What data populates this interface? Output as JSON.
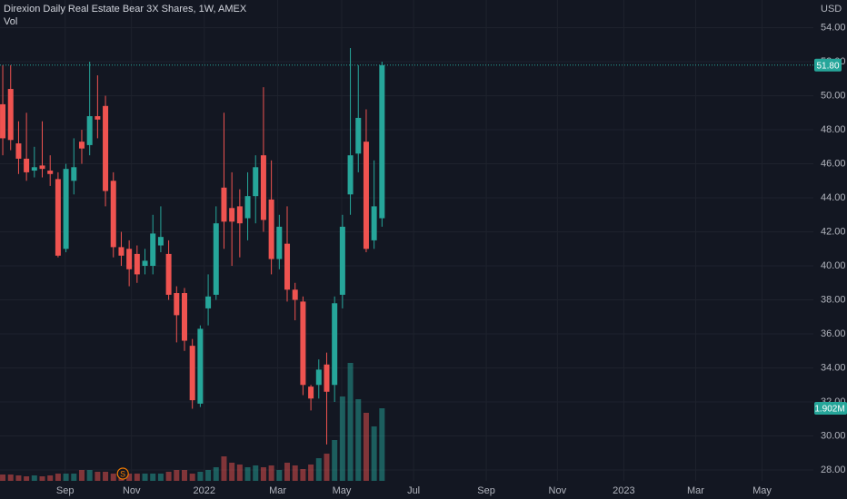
{
  "chart_data": {
    "type": "candlestick",
    "title": "Direxion Daily Real Estate Bear 3X Shares, 1W, AMEX",
    "volume_title": "Vol",
    "currency": "USD",
    "up_color": "#26a69a",
    "down_color": "#ef5350",
    "grid": true,
    "open": [
      49.5,
      50.4,
      47.2,
      46.3,
      45.6,
      45.9,
      45.6,
      45.1,
      41.0,
      45.0,
      47.3,
      47.1,
      48.8,
      49.4,
      45.0,
      41.1,
      41.0,
      40.7,
      40.0,
      40.0,
      41.2,
      40.7,
      38.4,
      38.4,
      35.3,
      31.9,
      37.5,
      38.3,
      44.6,
      43.4,
      43.5,
      42.8,
      44.1,
      46.5,
      43.9,
      40.4,
      41.3,
      38.6,
      37.9,
      32.9,
      33.0,
      34.2,
      33.0,
      38.3,
      44.2,
      46.6,
      47.3,
      41.5,
      42.8
    ],
    "high": [
      51.8,
      51.8,
      48.5,
      49,
      47,
      48.5,
      46.5,
      45.5,
      46.0,
      47.5,
      48,
      52.0,
      51.2,
      50,
      45.5,
      42,
      41.5,
      41.2,
      41,
      43,
      43.5,
      41.5,
      38.8,
      38.7,
      35.7,
      36.5,
      39.5,
      43.5,
      49.0,
      45.5,
      44.5,
      45.5,
      46.5,
      50.5,
      46.2,
      43.0,
      43.5,
      39.0,
      38.2,
      33.0,
      34.5,
      34.9,
      38.2,
      43.0,
      52.8,
      51.8,
      49.2,
      46.2,
      52.0
    ],
    "low": [
      46.5,
      46.8,
      45.4,
      45.0,
      45.2,
      45.2,
      44.7,
      40.5,
      40.8,
      44.2,
      46.0,
      46.5,
      47.5,
      43.5,
      40.5,
      40.0,
      38.8,
      39.0,
      39.5,
      39.5,
      40.8,
      38.0,
      35.5,
      35.0,
      31.6,
      31.7,
      36.5,
      38.0,
      41.0,
      40.0,
      40.5,
      41.5,
      42.5,
      42.0,
      39.5,
      39.8,
      37.9,
      36.8,
      32.4,
      31.5,
      32.2,
      29.5,
      32.0,
      37.5,
      43.0,
      45.5,
      40.8,
      41.0,
      42.3
    ],
    "close": [
      47.5,
      47.4,
      46.3,
      45.5,
      45.8,
      45.7,
      45.4,
      40.6,
      45.7,
      45.8,
      46.9,
      48.8,
      48.6,
      44.4,
      41.1,
      40.6,
      39.8,
      39.5,
      40.3,
      41.9,
      41.7,
      38.3,
      37.1,
      35.6,
      32.1,
      36.3,
      38.2,
      42.5,
      42.6,
      42.6,
      42.5,
      44.1,
      45.8,
      42.7,
      40.4,
      42.3,
      38.6,
      38.0,
      33.0,
      32.2,
      33.9,
      32.6,
      37.8,
      42.3,
      46.5,
      48.7,
      41.0,
      43.5,
      51.8
    ],
    "volume": [
      166000,
      166000,
      143000,
      119000,
      143000,
      119000,
      143000,
      190000,
      190000,
      190000,
      285000,
      285000,
      238000,
      238000,
      190000,
      190000,
      190000,
      190000,
      190000,
      190000,
      190000,
      238000,
      285000,
      285000,
      190000,
      238000,
      285000,
      357000,
      642000,
      476000,
      428000,
      357000,
      404000,
      357000,
      404000,
      285000,
      476000,
      404000,
      309000,
      428000,
      594000,
      713000,
      1070000,
      2211000,
      3091000,
      2140000,
      1783000,
      1427000,
      1902000
    ],
    "last_price": {
      "value": 51.8,
      "label": "51.80"
    },
    "last_volume": {
      "value": 1902000,
      "label": "1.902M"
    },
    "events": [
      {
        "x": 15.2,
        "label": "S"
      }
    ],
    "ylim": [
      27.36,
      55.63
    ],
    "yticks": [
      {
        "value": 28,
        "label": "28.00"
      },
      {
        "value": 30,
        "label": "30.00"
      },
      {
        "value": 32,
        "label": "32.00"
      },
      {
        "value": 34,
        "label": "34.00"
      },
      {
        "value": 36,
        "label": "36.00"
      },
      {
        "value": 38,
        "label": "38.00"
      },
      {
        "value": 40,
        "label": "40.00"
      },
      {
        "value": 42,
        "label": "42.00"
      },
      {
        "value": 44,
        "label": "44.00"
      },
      {
        "value": 46,
        "label": "46.00"
      },
      {
        "value": 48,
        "label": "48.00"
      },
      {
        "value": 50,
        "label": "50.00"
      },
      {
        "value": 52,
        "label": "52.00"
      },
      {
        "value": 54,
        "label": "54.00"
      }
    ],
    "y2lim": [
      0,
      12600000
    ],
    "xlim": [
      -0.35,
      102.6
    ],
    "xticks": [
      {
        "value": 7.9,
        "label": "Sep"
      },
      {
        "value": 16.3,
        "label": "Nov"
      },
      {
        "value": 25.5,
        "label": "2022"
      },
      {
        "value": 34.8,
        "label": "Mar"
      },
      {
        "value": 42.9,
        "label": "May"
      },
      {
        "value": 52.0,
        "label": "Jul"
      },
      {
        "value": 61.2,
        "label": "Sep"
      },
      {
        "value": 70.2,
        "label": "Nov"
      },
      {
        "value": 78.6,
        "label": "2023"
      },
      {
        "value": 87.7,
        "label": "Mar"
      },
      {
        "value": 96.1,
        "label": "May"
      }
    ]
  }
}
